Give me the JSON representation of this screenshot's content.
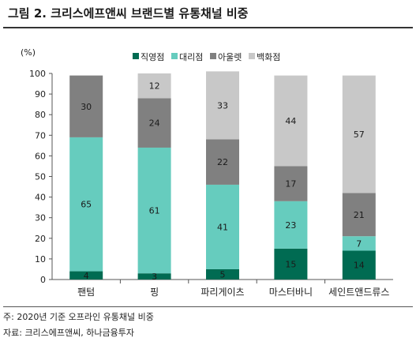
{
  "title": "그림 2. 크리스에프앤씨 브랜드별 유통채널 비중",
  "footnote": "주: 2020년 기준 오프라인 유통채널 비중",
  "source": "자료: 크리스에프앤씨, 하나금융투자",
  "chart_data": {
    "type": "bar",
    "stacked": true,
    "unit": "(%)",
    "ylim": [
      0,
      100
    ],
    "yticks": [
      0,
      10,
      20,
      30,
      40,
      50,
      60,
      70,
      80,
      90,
      100
    ],
    "categories": [
      "팬텀",
      "핑",
      "파리게이츠",
      "마스터바니",
      "세인트앤드류스"
    ],
    "legend_position": "top",
    "series": [
      {
        "name": "직영점",
        "color": "#006b52",
        "values": [
          4,
          3,
          5,
          15,
          14
        ]
      },
      {
        "name": "대리점",
        "color": "#66ccbe",
        "values": [
          65,
          61,
          41,
          23,
          7
        ]
      },
      {
        "name": "아울렛",
        "color": "#808080",
        "values": [
          30,
          24,
          22,
          17,
          21
        ]
      },
      {
        "name": "백화점",
        "color": "#c8c8c8",
        "values": [
          null,
          12,
          33,
          44,
          57
        ]
      }
    ]
  }
}
